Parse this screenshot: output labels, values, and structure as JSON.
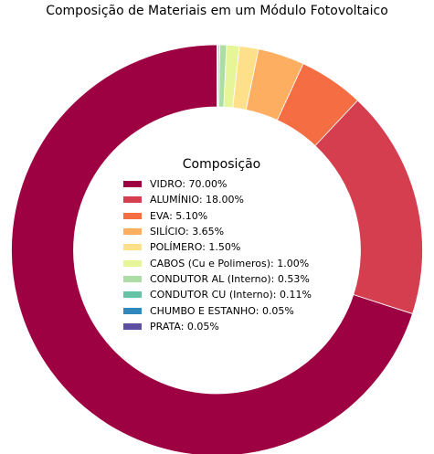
{
  "chart_data": {
    "type": "pie",
    "title": "Composição de Materiais em um Módulo Fotovoltaico",
    "legend_title": "Composição",
    "legend_position": "center",
    "donut": true,
    "start_angle_deg": 90,
    "direction": "counterclockwise",
    "slices": [
      {
        "label": "VIDRO: 70.00%",
        "value": 70.0,
        "color": "#9e0142"
      },
      {
        "label": "ALUMÍNIO: 18.00%",
        "value": 18.0,
        "color": "#d53e4f"
      },
      {
        "label": "EVA: 5.10%",
        "value": 5.1,
        "color": "#f46d43"
      },
      {
        "label": "SILÍCIO: 3.65%",
        "value": 3.65,
        "color": "#fdae61"
      },
      {
        "label": "POLÍMERO: 1.50%",
        "value": 1.5,
        "color": "#fee08b"
      },
      {
        "label": "CABOS (Cu e Polimeros): 1.00%",
        "value": 1.0,
        "color": "#e6f598"
      },
      {
        "label": "CONDUTOR AL (Interno): 0.53%",
        "value": 0.53,
        "color": "#abdda4"
      },
      {
        "label": "CONDUTOR CU (Interno): 0.11%",
        "value": 0.11,
        "color": "#66c2a5"
      },
      {
        "label": "CHUMBO E ESTANHO: 0.05%",
        "value": 0.05,
        "color": "#3288bd"
      },
      {
        "label": "PRATA: 0.05%",
        "value": 0.05,
        "color": "#5e4fa2"
      }
    ]
  }
}
